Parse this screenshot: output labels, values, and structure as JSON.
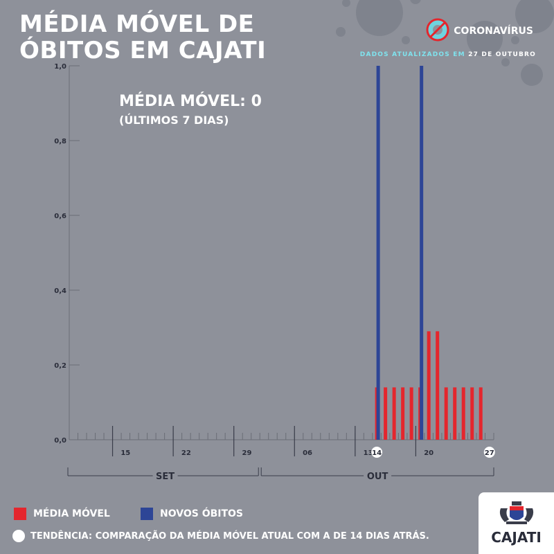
{
  "header": {
    "title_line1": "MÉDIA MÓVEL DE",
    "title_line2": "ÓBITOS EM CAJATI",
    "brand_label": "CORONAVÍRUS",
    "updated_label": "DADOS ATUALIZADOS EM",
    "updated_date": "27 DE OUTUBRO"
  },
  "summary": {
    "moving_avg_label": "MÉDIA MÓVEL: 0",
    "period_label": "(ÚLTIMOS 7 DIAS)"
  },
  "legend": {
    "moving_avg": "MÉDIA MÓVEL",
    "new_deaths": "NOVOS ÓBITOS",
    "trend": "TENDÊNCIA: COMPARAÇÃO DA MÉDIA MÓVEL ATUAL COM A DE 14 DIAS ATRÁS."
  },
  "logo": {
    "text": "CAJATI"
  },
  "colors": {
    "background": "#8e919a",
    "moving_avg": "#e4262d",
    "new_deaths": "#2d4596",
    "accent": "#7fe3ee"
  },
  "icons": {
    "brand": "no-virus-icon",
    "trend": "white-dot-icon",
    "logo": "coat-of-arms-icon"
  },
  "chart_data": {
    "type": "bar",
    "ylim": [
      0,
      1.0
    ],
    "yticks": [
      "0,0",
      "0,2",
      "0,4",
      "0,6",
      "0,8",
      "1,0"
    ],
    "x_date_labels": [
      "15",
      "22",
      "29",
      "06",
      "13",
      "14",
      "20",
      "27"
    ],
    "months": [
      "SET",
      "OUT"
    ],
    "x_start": "09-09",
    "x_end": "10-27",
    "series": [
      {
        "name": "MÉDIA MÓVEL",
        "points": [
          {
            "date": "10-14",
            "value": 0.14
          },
          {
            "date": "10-15",
            "value": 0.14
          },
          {
            "date": "10-16",
            "value": 0.14
          },
          {
            "date": "10-17",
            "value": 0.14
          },
          {
            "date": "10-18",
            "value": 0.14
          },
          {
            "date": "10-19",
            "value": 0.14
          },
          {
            "date": "10-20",
            "value": 0.29
          },
          {
            "date": "10-21",
            "value": 0.29
          },
          {
            "date": "10-22",
            "value": 0.14
          },
          {
            "date": "10-23",
            "value": 0.14
          },
          {
            "date": "10-24",
            "value": 0.14
          },
          {
            "date": "10-25",
            "value": 0.14
          },
          {
            "date": "10-26",
            "value": 0.14
          }
        ]
      },
      {
        "name": "NOVOS ÓBITOS",
        "points": [
          {
            "date": "10-14",
            "value": 1
          },
          {
            "date": "10-19",
            "value": 1
          }
        ]
      }
    ]
  }
}
